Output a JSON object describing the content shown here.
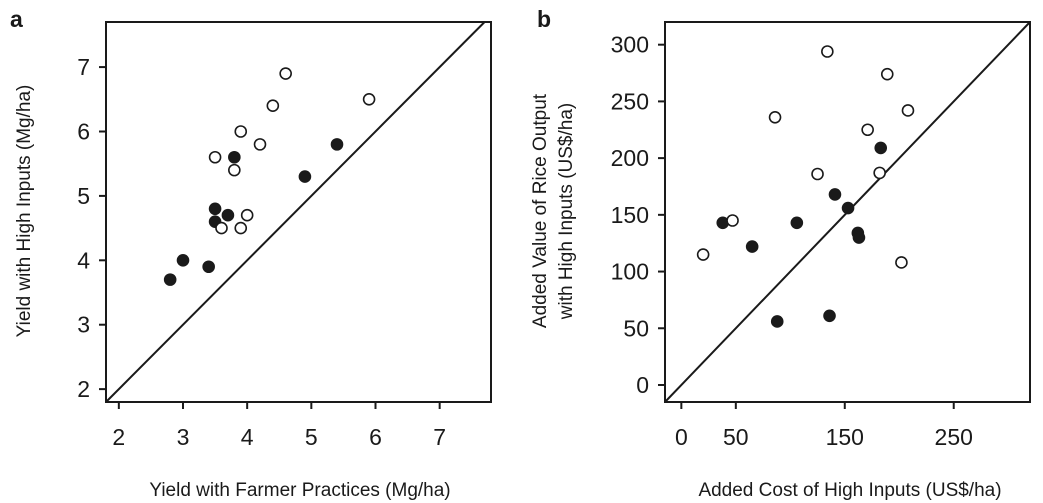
{
  "chart_data": [
    {
      "type": "scatter",
      "panel_label": "a",
      "xlabel": "Yield with Farmer Practices (Mg/ha)",
      "ylabel": "Yield with High Inputs (Mg/ha)",
      "xlim": [
        1.8,
        7.8
      ],
      "ylim": [
        1.8,
        7.7
      ],
      "xticks": [
        2,
        3,
        4,
        5,
        6,
        7
      ],
      "yticks": [
        2,
        3,
        4,
        5,
        6,
        7
      ],
      "reference_line": "1:1",
      "series": [
        {
          "marker": "filled-circle",
          "color": "#1a1a1a",
          "points": [
            [
              2.8,
              3.7
            ],
            [
              3.0,
              4.0
            ],
            [
              3.4,
              3.9
            ],
            [
              3.5,
              4.6
            ],
            [
              3.5,
              4.8
            ],
            [
              3.7,
              4.7
            ],
            [
              3.8,
              5.6
            ],
            [
              4.9,
              5.3
            ],
            [
              5.4,
              5.8
            ]
          ]
        },
        {
          "marker": "open-circle",
          "color": "#1a1a1a",
          "points": [
            [
              3.5,
              5.6
            ],
            [
              3.6,
              4.5
            ],
            [
              3.8,
              5.4
            ],
            [
              3.9,
              4.5
            ],
            [
              3.9,
              6.0
            ],
            [
              4.0,
              4.7
            ],
            [
              4.2,
              5.8
            ],
            [
              4.4,
              6.4
            ],
            [
              4.6,
              6.9
            ],
            [
              5.9,
              6.5
            ]
          ]
        }
      ]
    },
    {
      "type": "scatter",
      "panel_label": "b",
      "xlabel": "Added Cost of High Inputs (US$/ha)",
      "ylabel_lines": [
        "Added Value of Rice Output",
        "with High Inputs (US$/ha)"
      ],
      "xlim": [
        -15,
        320
      ],
      "ylim": [
        -15,
        320
      ],
      "xticks": [
        0,
        50,
        150,
        250
      ],
      "yticks": [
        0,
        50,
        100,
        150,
        200,
        250,
        300
      ],
      "reference_line": "1:1",
      "series": [
        {
          "marker": "filled-circle",
          "color": "#1a1a1a",
          "points": [
            [
              38,
              143
            ],
            [
              65,
              122
            ],
            [
              88,
              56
            ],
            [
              106,
              143
            ],
            [
              136,
              61
            ],
            [
              141,
              168
            ],
            [
              153,
              156
            ],
            [
              162,
              134
            ],
            [
              163,
              130
            ],
            [
              183,
              209
            ]
          ]
        },
        {
          "marker": "open-circle",
          "color": "#1a1a1a",
          "points": [
            [
              20,
              115
            ],
            [
              47,
              145
            ],
            [
              86,
              236
            ],
            [
              125,
              186
            ],
            [
              134,
              294
            ],
            [
              171,
              225
            ],
            [
              182,
              187
            ],
            [
              189,
              274
            ],
            [
              202,
              108
            ],
            [
              208,
              242
            ]
          ]
        }
      ]
    }
  ]
}
